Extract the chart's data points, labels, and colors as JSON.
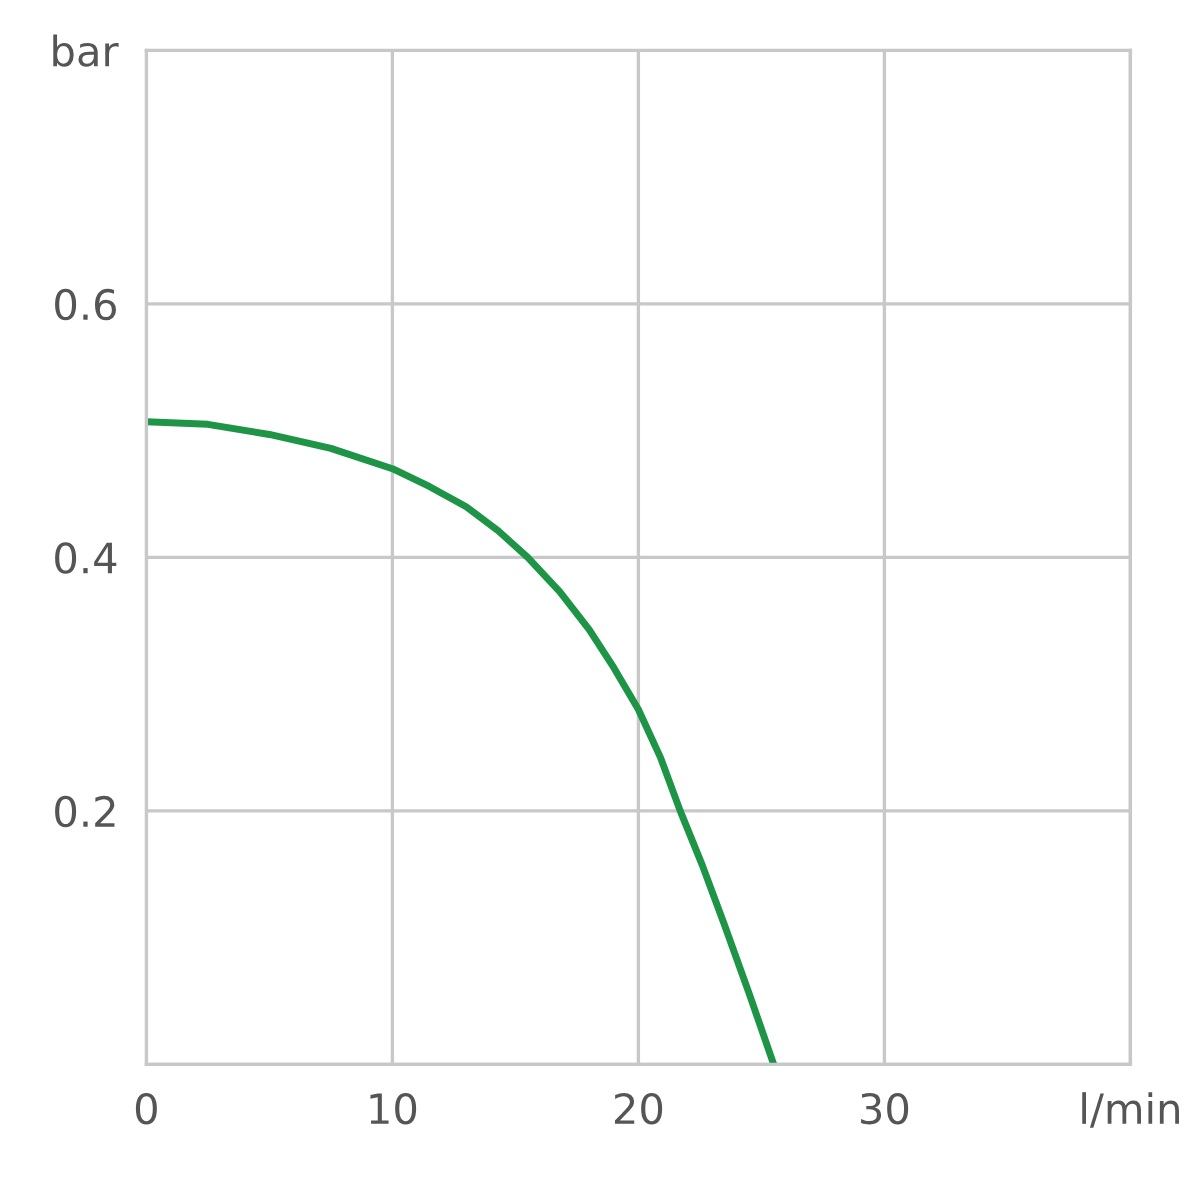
{
  "chart_data": {
    "type": "line",
    "series": [
      {
        "color": "#1e9446",
        "x": [
          0,
          2.5,
          5,
          7.5,
          10,
          11.5,
          13,
          14.3,
          15.5,
          16.8,
          18,
          19,
          20,
          20.9,
          21.7,
          22.6,
          23.5,
          24.5,
          25.5
        ],
        "values": [
          0.507,
          0.505,
          0.497,
          0.486,
          0.47,
          0.456,
          0.44,
          0.421,
          0.4,
          0.373,
          0.343,
          0.313,
          0.28,
          0.242,
          0.2,
          0.157,
          0.11,
          0.056,
          0
        ]
      }
    ],
    "xlim": [
      0,
      40
    ],
    "xticks": [
      0,
      10,
      20,
      30,
      {
        "value": 40,
        "label": "l/min"
      }
    ],
    "ylim": [
      0,
      0.8
    ],
    "yticks": [
      {
        "value": 0,
        "label": null
      },
      0.2,
      0.4,
      0.6,
      {
        "value": 0.8,
        "label": "bar"
      }
    ],
    "grid": true,
    "marker": "none",
    "line_style": "solid"
  }
}
